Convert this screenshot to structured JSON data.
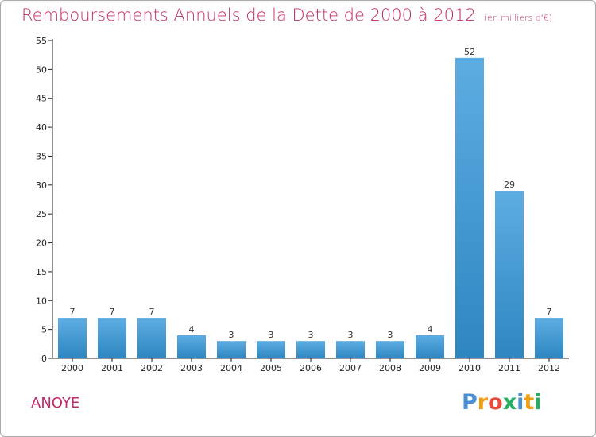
{
  "title": "Remboursements Annuels de la Dette de 2000 à 2012",
  "unit": "(en milliers d'€)",
  "commune": "ANOYE",
  "logo": {
    "text": "Proxiti",
    "letters": [
      "P",
      "r",
      "o",
      "x",
      "i",
      "t",
      "i"
    ],
    "colors": [
      "#4a8fd4",
      "#f39c12",
      "#e74c3c",
      "#27ae60",
      "#4a8fd4",
      "#f39c12",
      "#27ae60"
    ]
  },
  "colors": {
    "title": "#c32a6b",
    "bar_light": "#5dade2",
    "bar_dark": "#2e86c1",
    "axis": "#222222"
  },
  "chart_data": {
    "type": "bar",
    "categories": [
      "2000",
      "2001",
      "2002",
      "2003",
      "2004",
      "2005",
      "2006",
      "2007",
      "2008",
      "2009",
      "2010",
      "2011",
      "2012"
    ],
    "values": [
      7,
      7,
      7,
      4,
      3,
      3,
      3,
      3,
      3,
      4,
      52,
      29,
      7
    ],
    "ylim": [
      0,
      55
    ],
    "yticks": [
      0,
      5,
      10,
      15,
      20,
      25,
      30,
      35,
      40,
      45,
      50,
      55
    ],
    "grid": false,
    "data_labels": true
  }
}
